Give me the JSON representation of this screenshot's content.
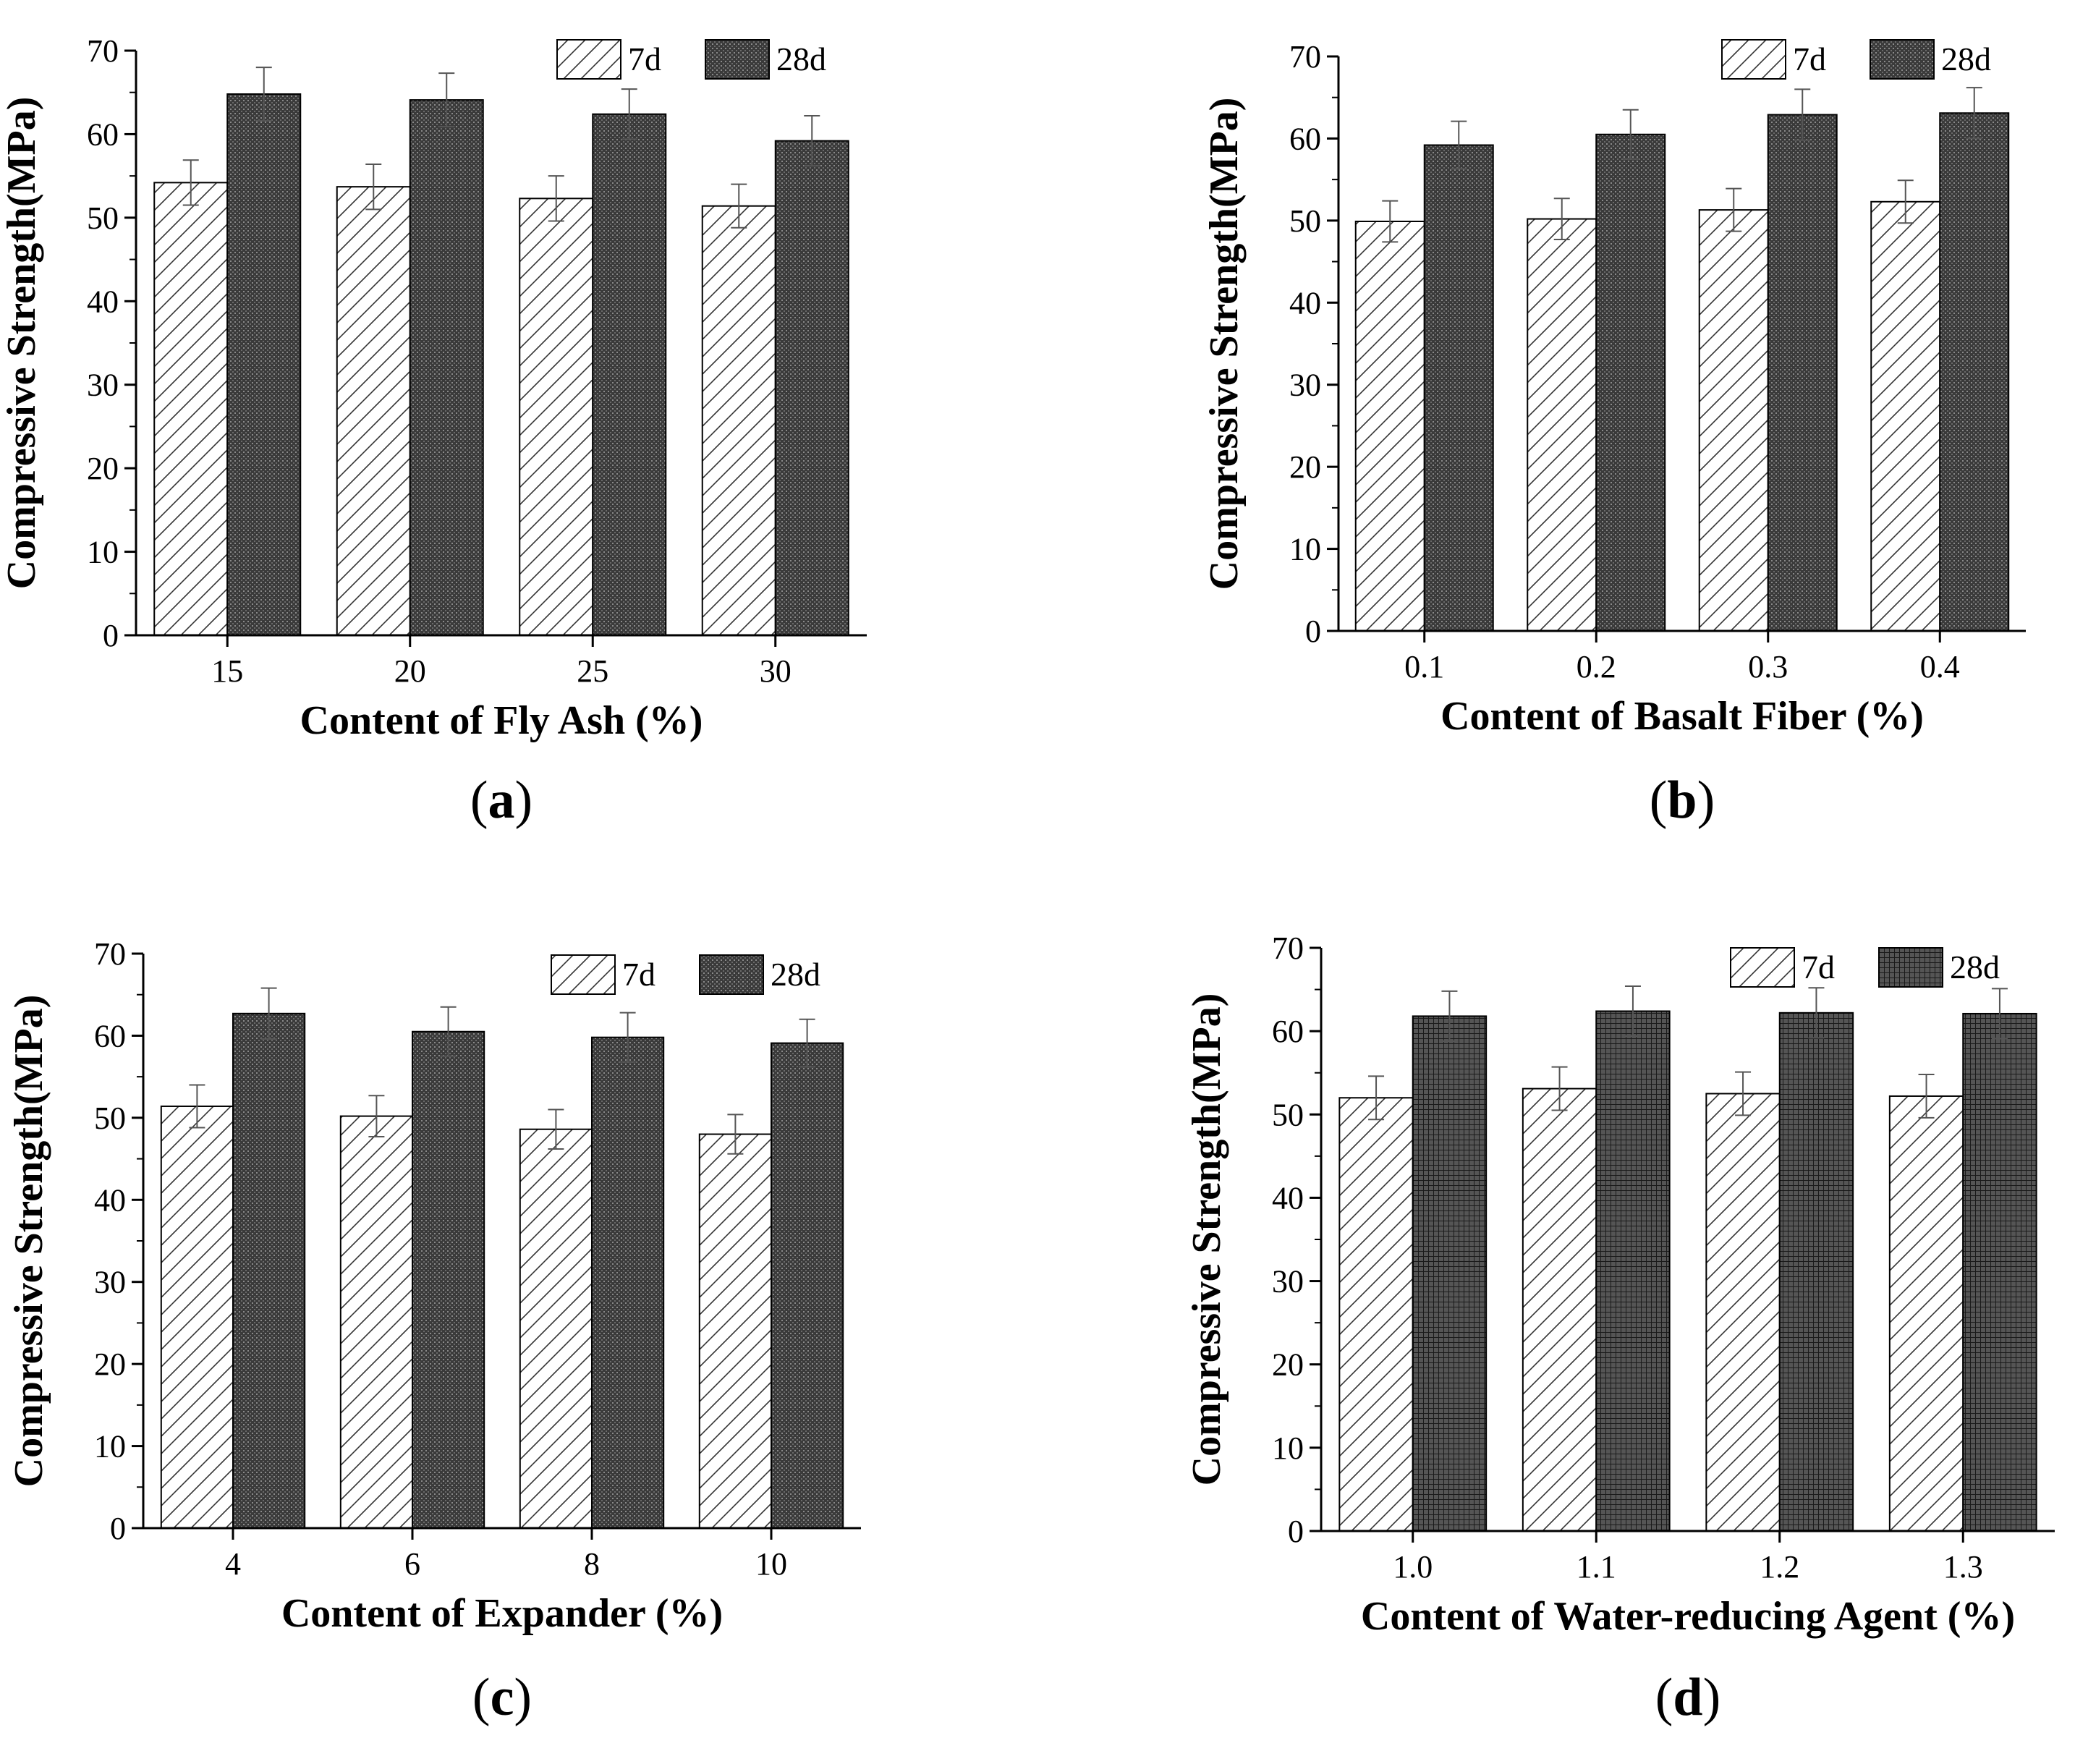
{
  "chart_data": [
    {
      "panel": "(a)",
      "panel_letter": "a",
      "type": "bar",
      "categories": [
        "15",
        "20",
        "25",
        "30"
      ],
      "series": [
        {
          "name": "7d",
          "values": [
            54.2,
            53.7,
            52.3,
            51.4
          ],
          "errors": [
            2.7,
            2.7,
            2.7,
            2.6
          ],
          "pattern": "hatch"
        },
        {
          "name": "28d",
          "values": [
            64.8,
            64.1,
            62.4,
            59.2
          ],
          "errors": [
            3.2,
            3.2,
            3.0,
            3.0
          ],
          "pattern": "dense"
        }
      ],
      "xlabel": "Content of Fly Ash (%)",
      "ylabel": "Compressive Strength(MPa)",
      "ylim": [
        0,
        70
      ],
      "yticks": [
        0,
        10,
        20,
        30,
        40,
        50,
        60,
        70
      ],
      "legend": "top-right"
    },
    {
      "panel": "(b)",
      "panel_letter": "b",
      "type": "bar",
      "categories": [
        "0.1",
        "0.2",
        "0.3",
        "0.4"
      ],
      "series": [
        {
          "name": "7d",
          "values": [
            49.9,
            50.2,
            51.3,
            52.3
          ],
          "errors": [
            2.5,
            2.5,
            2.6,
            2.6
          ],
          "pattern": "hatch"
        },
        {
          "name": "28d",
          "values": [
            59.2,
            60.5,
            62.9,
            63.1
          ],
          "errors": [
            2.9,
            3.0,
            3.1,
            3.1
          ],
          "pattern": "dense"
        }
      ],
      "xlabel": "Content of Basalt Fiber (%)",
      "ylabel": "Compressive Strength(MPa)",
      "ylim": [
        0,
        70
      ],
      "yticks": [
        0,
        10,
        20,
        30,
        40,
        50,
        60,
        70
      ],
      "legend": "top-right"
    },
    {
      "panel": "(c)",
      "panel_letter": "c",
      "type": "bar",
      "categories": [
        "4",
        "6",
        "8",
        "10"
      ],
      "series": [
        {
          "name": "7d",
          "values": [
            51.4,
            50.2,
            48.6,
            48.0
          ],
          "errors": [
            2.6,
            2.5,
            2.4,
            2.4
          ],
          "pattern": "hatch"
        },
        {
          "name": "28d",
          "values": [
            62.7,
            60.5,
            59.8,
            59.1
          ],
          "errors": [
            3.1,
            3.0,
            3.0,
            2.9
          ],
          "pattern": "dense"
        }
      ],
      "xlabel": "Content of Expander (%)",
      "ylabel": "Compressive Strength(MPa)",
      "ylim": [
        0,
        70
      ],
      "yticks": [
        0,
        10,
        20,
        30,
        40,
        50,
        60,
        70
      ],
      "legend": "top-right"
    },
    {
      "panel": "(d)",
      "panel_letter": "d",
      "type": "bar",
      "categories": [
        "1.0",
        "1.1",
        "1.2",
        "1.3"
      ],
      "series": [
        {
          "name": "7d",
          "values": [
            52.0,
            53.1,
            52.5,
            52.2
          ],
          "errors": [
            2.6,
            2.6,
            2.6,
            2.6
          ],
          "pattern": "hatch"
        },
        {
          "name": "28d",
          "values": [
            61.8,
            62.4,
            62.2,
            62.1
          ],
          "errors": [
            3.0,
            3.0,
            3.0,
            3.0
          ],
          "pattern": "grid"
        }
      ],
      "xlabel": "Content of Water-reducing Agent (%)",
      "ylabel": "Compressive Strength(MPa)",
      "ylim": [
        0,
        70
      ],
      "yticks": [
        0,
        10,
        20,
        30,
        40,
        50,
        60,
        70
      ],
      "legend": "top-right"
    }
  ]
}
